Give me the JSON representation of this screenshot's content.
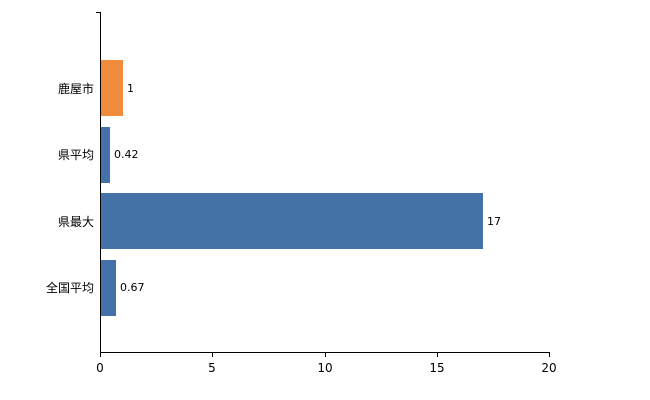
{
  "chart_data": {
    "type": "bar",
    "orientation": "horizontal",
    "title": "",
    "xlabel": "",
    "ylabel": "",
    "categories": [
      "鹿屋市",
      "県平均",
      "県最大",
      "全国平均"
    ],
    "values": [
      1,
      0.42,
      17,
      0.67
    ],
    "value_labels": [
      "1",
      "0.42",
      "17",
      "0.67"
    ],
    "bar_colors": [
      "#ef8c3d",
      "#4471a7",
      "#4471a7",
      "#4471a7"
    ],
    "x_ticks": [
      0,
      5,
      10,
      15,
      20
    ],
    "x_tick_labels": [
      "0",
      "5",
      "10",
      "15",
      "20"
    ],
    "xlim": [
      0,
      20
    ],
    "grid": false,
    "legend": false,
    "axis_color": "#000000",
    "background": "#ffffff"
  }
}
